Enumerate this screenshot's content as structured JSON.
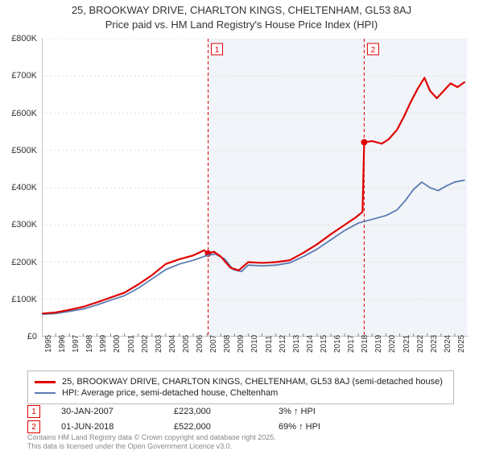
{
  "chart": {
    "title_line1": "25, BROOKWAY DRIVE, CHARLTON KINGS, CHELTENHAM, GL53 8AJ",
    "title_line2": "Price paid vs. HM Land Registry's House Price Index (HPI)",
    "background_color": "#ffffff",
    "plot_background_color": "#ffffff",
    "shaded_region": {
      "x_start": 2007.08,
      "x_end": 2025.9,
      "fill": "#f1f4f8"
    },
    "x": {
      "min": 1995,
      "max": 2026,
      "ticks": [
        1995,
        1996,
        1997,
        1998,
        1999,
        2000,
        2001,
        2002,
        2003,
        2004,
        2005,
        2006,
        2007,
        2008,
        2009,
        2010,
        2011,
        2012,
        2013,
        2014,
        2015,
        2016,
        2017,
        2018,
        2019,
        2020,
        2021,
        2022,
        2023,
        2024,
        2025
      ],
      "tick_fontsize": 10,
      "tick_rotation": -90,
      "tick_color": "#333333"
    },
    "y": {
      "min": 0,
      "max": 800000,
      "ticks": [
        0,
        100000,
        200000,
        300000,
        400000,
        500000,
        600000,
        700000,
        800000
      ],
      "tick_labels": [
        "£0",
        "£100K",
        "£200K",
        "£300K",
        "£400K",
        "£500K",
        "£600K",
        "£700K",
        "£800K"
      ],
      "tick_fontsize": 11,
      "grid_color": "#dddddd",
      "grid_dash": "2,3"
    },
    "series": {
      "property": {
        "label": "25, BROOKWAY DRIVE, CHARLTON KINGS, CHELTENHAM, GL53 8AJ (semi-detached house)",
        "color": "#e00000",
        "line_width": 2.2,
        "points": [
          [
            1995.0,
            62000
          ],
          [
            1996.0,
            65000
          ],
          [
            1997.0,
            72000
          ],
          [
            1998.0,
            80000
          ],
          [
            1999.0,
            92000
          ],
          [
            2000.0,
            105000
          ],
          [
            2001.0,
            118000
          ],
          [
            2002.0,
            140000
          ],
          [
            2003.0,
            165000
          ],
          [
            2004.0,
            195000
          ],
          [
            2005.0,
            208000
          ],
          [
            2006.0,
            218000
          ],
          [
            2006.8,
            232000
          ],
          [
            2007.08,
            223000
          ],
          [
            2007.5,
            228000
          ],
          [
            2008.0,
            215000
          ],
          [
            2008.7,
            185000
          ],
          [
            2009.3,
            178000
          ],
          [
            2010.0,
            200000
          ],
          [
            2011.0,
            198000
          ],
          [
            2012.0,
            200000
          ],
          [
            2013.0,
            205000
          ],
          [
            2014.0,
            225000
          ],
          [
            2015.0,
            248000
          ],
          [
            2016.0,
            275000
          ],
          [
            2017.0,
            300000
          ],
          [
            2017.8,
            320000
          ],
          [
            2018.3,
            335000
          ],
          [
            2018.42,
            522000
          ],
          [
            2019.0,
            525000
          ],
          [
            2019.7,
            518000
          ],
          [
            2020.2,
            530000
          ],
          [
            2020.8,
            555000
          ],
          [
            2021.3,
            590000
          ],
          [
            2021.8,
            630000
          ],
          [
            2022.3,
            665000
          ],
          [
            2022.8,
            695000
          ],
          [
            2023.2,
            660000
          ],
          [
            2023.7,
            640000
          ],
          [
            2024.2,
            660000
          ],
          [
            2024.7,
            680000
          ],
          [
            2025.2,
            670000
          ],
          [
            2025.7,
            683000
          ]
        ]
      },
      "hpi": {
        "label": "HPI: Average price, semi-detached house, Cheltenham",
        "color": "#5b7bb4",
        "line_width": 1.8,
        "points": [
          [
            1995.0,
            60000
          ],
          [
            1996.0,
            62000
          ],
          [
            1997.0,
            68000
          ],
          [
            1998.0,
            74000
          ],
          [
            1999.0,
            85000
          ],
          [
            2000.0,
            98000
          ],
          [
            2001.0,
            110000
          ],
          [
            2002.0,
            130000
          ],
          [
            2003.0,
            155000
          ],
          [
            2004.0,
            180000
          ],
          [
            2005.0,
            195000
          ],
          [
            2006.0,
            205000
          ],
          [
            2007.0,
            218000
          ],
          [
            2007.6,
            222000
          ],
          [
            2008.3,
            208000
          ],
          [
            2008.9,
            180000
          ],
          [
            2009.5,
            175000
          ],
          [
            2010.0,
            192000
          ],
          [
            2011.0,
            190000
          ],
          [
            2012.0,
            192000
          ],
          [
            2013.0,
            198000
          ],
          [
            2014.0,
            215000
          ],
          [
            2015.0,
            235000
          ],
          [
            2016.0,
            260000
          ],
          [
            2017.0,
            285000
          ],
          [
            2018.0,
            305000
          ],
          [
            2019.0,
            315000
          ],
          [
            2020.0,
            325000
          ],
          [
            2020.8,
            340000
          ],
          [
            2021.4,
            365000
          ],
          [
            2022.0,
            395000
          ],
          [
            2022.6,
            415000
          ],
          [
            2023.2,
            400000
          ],
          [
            2023.8,
            392000
          ],
          [
            2024.4,
            405000
          ],
          [
            2025.0,
            415000
          ],
          [
            2025.7,
            420000
          ]
        ]
      }
    },
    "markers": [
      {
        "n": "1",
        "x": 2007.08,
        "y": 223000,
        "color": "#e00000"
      },
      {
        "n": "2",
        "x": 2018.42,
        "y": 522000,
        "color": "#e00000"
      }
    ],
    "marker_line_color": "#e00000",
    "marker_line_dash": "4,3"
  },
  "legend": {
    "border_color": "#bbbbbb",
    "rows": [
      {
        "color": "#e00000",
        "width": 3,
        "label": "25, BROOKWAY DRIVE, CHARLTON KINGS, CHELTENHAM, GL53 8AJ (semi-detached house)"
      },
      {
        "color": "#5b7bb4",
        "width": 2,
        "label": "HPI: Average price, semi-detached house, Cheltenham"
      }
    ]
  },
  "marker_table": {
    "rows": [
      {
        "n": "1",
        "color": "#e00000",
        "date": "30-JAN-2007",
        "price": "£223,000",
        "delta": "3% ↑ HPI"
      },
      {
        "n": "2",
        "color": "#e00000",
        "date": "01-JUN-2018",
        "price": "£522,000",
        "delta": "69% ↑ HPI"
      }
    ],
    "col_widths": {
      "date": 140,
      "price": 130,
      "delta": 140
    }
  },
  "footer": {
    "line1": "Contains HM Land Registry data © Crown copyright and database right 2025.",
    "line2": "This data is licensed under the Open Government Licence v3.0."
  }
}
